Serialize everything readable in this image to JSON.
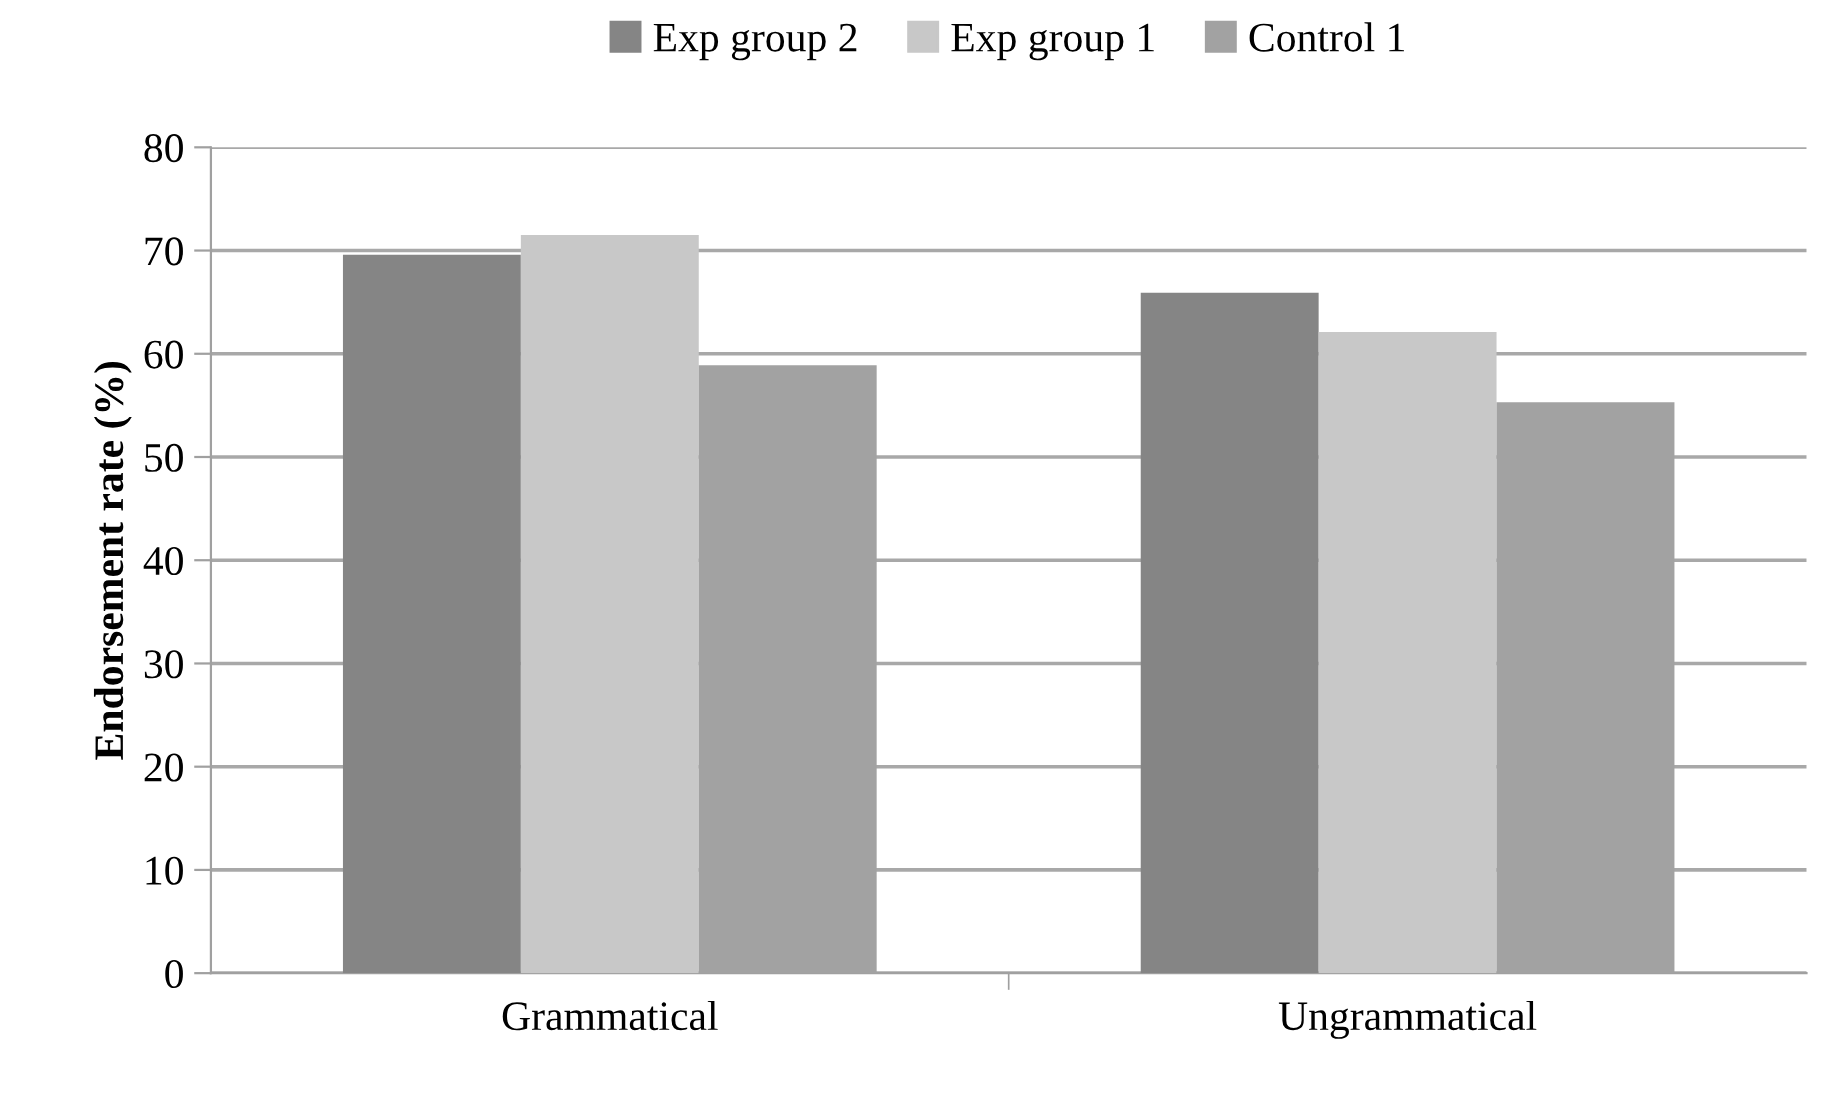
{
  "chart_data": {
    "type": "bar",
    "ylabel": "Endorsement rate (%)",
    "categories": [
      "Grammatical",
      "Ungrammatical"
    ],
    "series": [
      {
        "name": "Exp group 2",
        "color": "#858585",
        "values": [
          69.6,
          65.9
        ]
      },
      {
        "name": "Exp group 1",
        "color": "#c8c8c8",
        "values": [
          71.5,
          62.1
        ]
      },
      {
        "name": "Control 1",
        "color": "#a2a2a2",
        "values": [
          58.9,
          55.3
        ]
      }
    ],
    "ylim": [
      0,
      80
    ],
    "yticks": [
      0,
      10,
      20,
      30,
      40,
      50,
      60,
      70,
      80
    ],
    "grid": "y",
    "legend": "top"
  }
}
